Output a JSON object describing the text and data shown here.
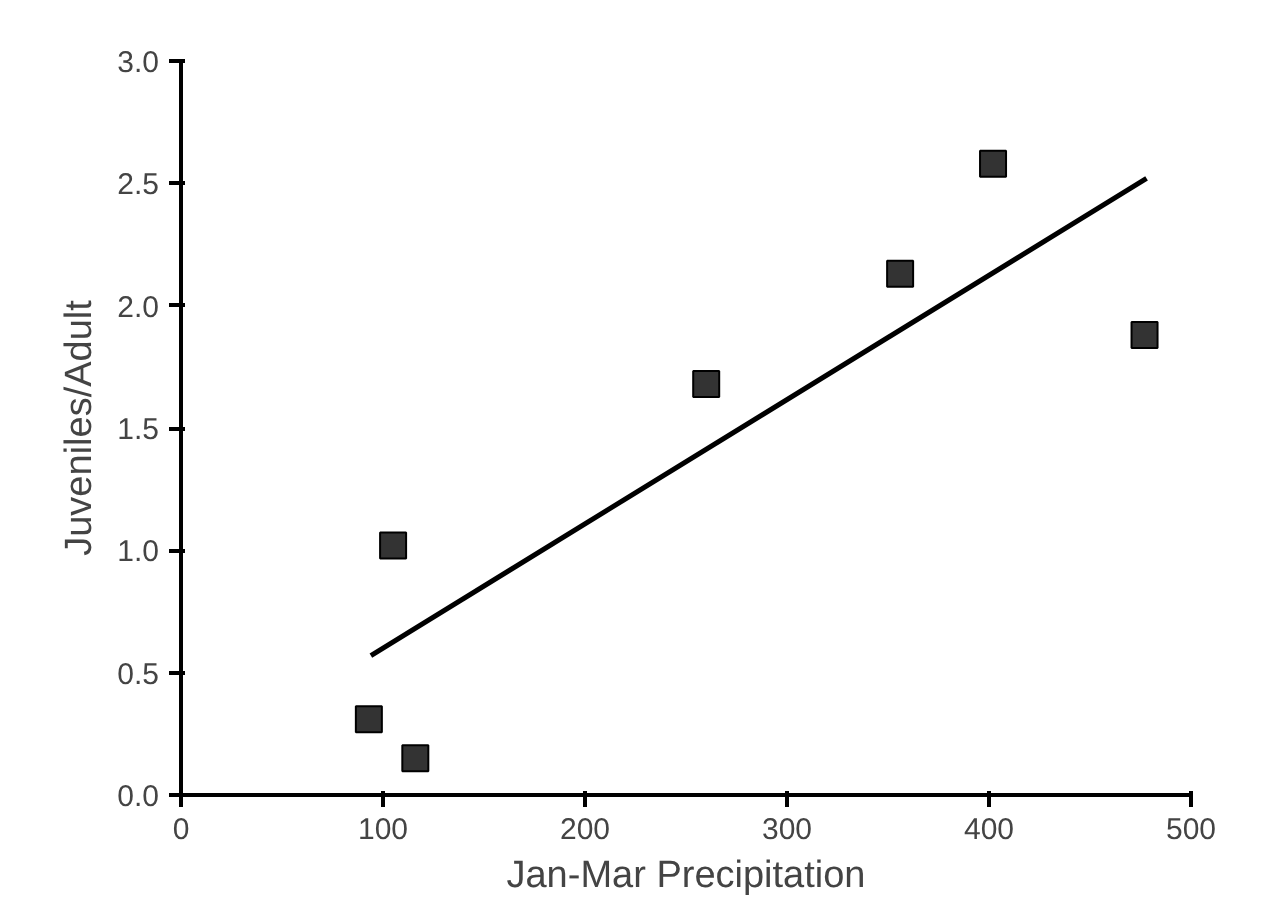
{
  "chart_data": {
    "type": "scatter",
    "xlabel": "Jan-Mar Precipitation",
    "ylabel": "Juveniles/Adult",
    "xlim": [
      0,
      500
    ],
    "ylim": [
      0,
      3.0
    ],
    "xticks": [
      0,
      100,
      200,
      300,
      400,
      500
    ],
    "yticks": [
      {
        "value": 0,
        "label": "0.0"
      },
      0.5,
      {
        "value": 1,
        "label": "1.0"
      },
      1.5,
      {
        "value": 2,
        "label": "2.0"
      },
      2.5,
      {
        "value": 3,
        "label": "3.0"
      }
    ],
    "grid": false,
    "series": [
      {
        "marker": "square",
        "color": "#333333",
        "x": [
          93,
          105,
          116,
          260,
          356,
          402,
          477
        ],
        "values": [
          0.31,
          1.02,
          0.15,
          1.68,
          2.13,
          2.58,
          1.88
        ]
      },
      {
        "type": "line",
        "marker": "none",
        "color": "#000000",
        "x": [
          94,
          478
        ],
        "values": [
          0.57,
          2.52
        ]
      }
    ]
  }
}
